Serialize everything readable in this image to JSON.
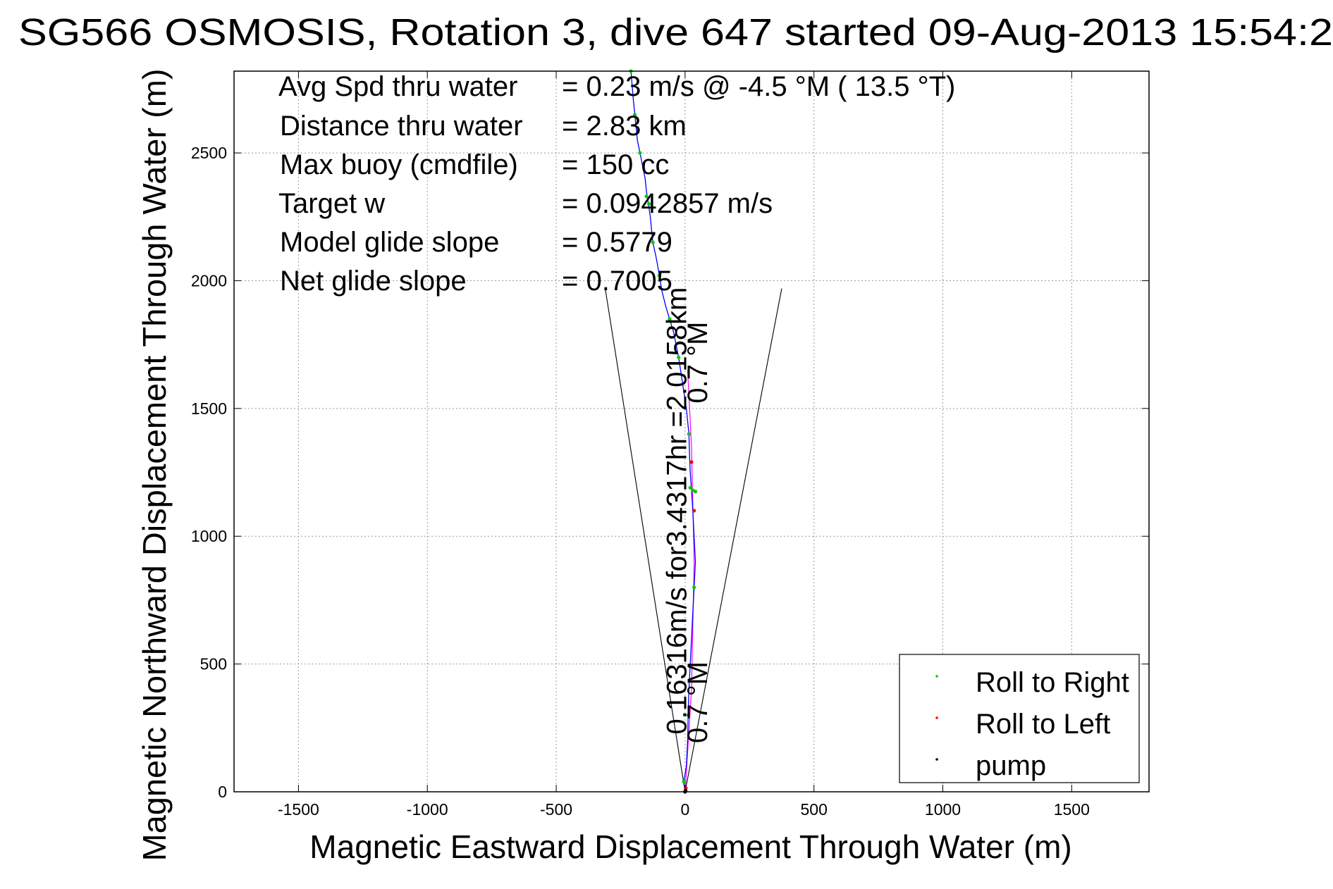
{
  "chart_data": {
    "type": "line",
    "title": "SG566 OSMOSIS, Rotation 3, dive 647 started 09-Aug-2013 15:54:2",
    "xlabel": "Magnetic Eastward Displacement Through Water (m)",
    "ylabel": "Magnetic Northward Displacement Through Water (m)",
    "xlim": [
      -1750,
      1800
    ],
    "ylim": [
      0,
      2820
    ],
    "xticks": [
      -1500,
      -1000,
      -500,
      0,
      500,
      1000,
      1500
    ],
    "xtick_labels": [
      "-1500",
      "-1000",
      "-500",
      "0",
      "500",
      "1000",
      "1500"
    ],
    "yticks": [
      0,
      500,
      1000,
      1500,
      2000,
      2500
    ],
    "ytick_labels": [
      "0",
      "500",
      "1000",
      "1500",
      "2000",
      "2500"
    ],
    "grid": true,
    "legend_position": "bottom-right",
    "annotations": [
      {
        "label": "Avg Spd thru water",
        "value": "=  0.23 m/s @  -4.5 °M ( 13.5 °T)"
      },
      {
        "label": "Distance thru water",
        "value": "=  2.83 km"
      },
      {
        "label": "Max buoy (cmdfile)",
        "value": "= 150 cc"
      },
      {
        "label": "Target w",
        "value": "= 0.0942857 m/s"
      },
      {
        "label": "Model glide slope",
        "value": "= 0.5779"
      },
      {
        "label": "Net glide slope",
        "value": "= 0.7005"
      }
    ],
    "rotated_labels": [
      {
        "text": "0.16316m/s for3.4317hr =2.0158km",
        "x": 5,
        "y": 1100
      },
      {
        "text": "0.7 °M",
        "x": 85,
        "y": 1680
      },
      {
        "text": "0.7 °M",
        "x": 85,
        "y": 350
      }
    ],
    "cone_lines": [
      {
        "x": [
          0,
          -310
        ],
        "y": [
          0,
          1970
        ]
      },
      {
        "x": [
          0,
          375
        ],
        "y": [
          0,
          1970
        ]
      }
    ],
    "track": {
      "name": "track",
      "color": "#0000ff",
      "x": [
        0,
        -5,
        5,
        10,
        12,
        15,
        20,
        25,
        30,
        35,
        40,
        35,
        30,
        25,
        20,
        18,
        15,
        5,
        -10,
        -25,
        -45,
        -60,
        -75,
        -90,
        -100,
        -110,
        -125,
        -130,
        -135,
        -142,
        -150,
        -155,
        -165,
        -175,
        -185,
        -190,
        -195,
        -200,
        -210
      ],
      "y": [
        0,
        40,
        100,
        200,
        300,
        400,
        500,
        600,
        700,
        800,
        900,
        1000,
        1100,
        1180,
        1250,
        1300,
        1400,
        1500,
        1600,
        1700,
        1800,
        1850,
        1900,
        1960,
        2020,
        2080,
        2150,
        2200,
        2250,
        2300,
        2350,
        2400,
        2450,
        2500,
        2550,
        2600,
        2650,
        2700,
        2820
      ]
    },
    "current_line": {
      "color": "#ff00ff",
      "x": [
        0,
        25,
        35,
        25,
        10
      ],
      "y": [
        0,
        400,
        900,
        1350,
        1650
      ]
    },
    "series": [
      {
        "name": "Roll to Right",
        "color": "#00cc00",
        "x": [
          -5,
          12,
          35,
          30,
          15,
          -25,
          -60,
          -100,
          -125,
          -140,
          -150,
          -175,
          -195,
          -210,
          40,
          20
        ],
        "y": [
          40,
          300,
          800,
          1180,
          1400,
          1700,
          1850,
          2020,
          2150,
          2300,
          2330,
          2500,
          2650,
          2820,
          1175,
          1190
        ]
      },
      {
        "name": "Roll to Left",
        "color": "#ff0000",
        "x": [
          0,
          3,
          25,
          35
        ],
        "y": [
          0,
          15,
          1290,
          1100
        ]
      },
      {
        "name": "pump",
        "color": "#000000",
        "x": [
          0,
          2
        ],
        "y": [
          0,
          5
        ]
      }
    ],
    "legend_entries": [
      "Roll to Right",
      "Roll to Left",
      "pump"
    ]
  }
}
